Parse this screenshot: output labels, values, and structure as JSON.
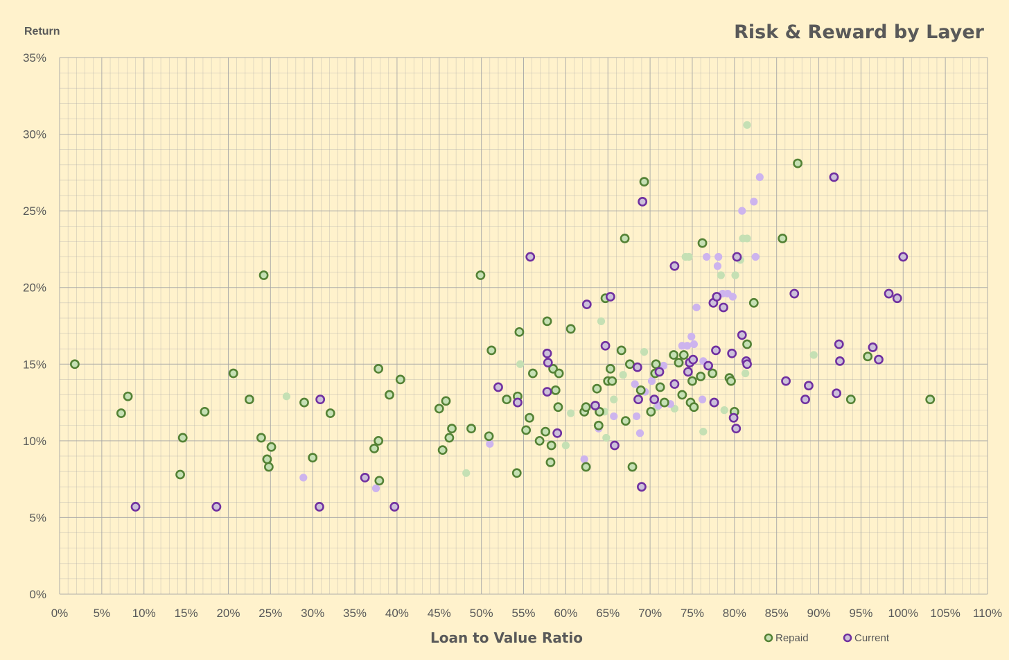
{
  "chart_data": {
    "type": "scatter",
    "title": "Risk & Reward by Layer",
    "ylabel": "Return",
    "xlabel": "Loan to Value Ratio",
    "xlim": [
      0,
      110
    ],
    "ylim": [
      0,
      35
    ],
    "x_ticks": [
      "0%",
      "5%",
      "10%",
      "15%",
      "20%",
      "25%",
      "30%",
      "35%",
      "40%",
      "45%",
      "50%",
      "55%",
      "60%",
      "65%",
      "70%",
      "75%",
      "80%",
      "85%",
      "90%",
      "95%",
      "100%",
      "105%",
      "110%"
    ],
    "y_ticks": [
      "0%",
      "5%",
      "10%",
      "15%",
      "20%",
      "25%",
      "30%",
      "35%"
    ],
    "grid": true,
    "legend": "bottom-right",
    "colors": {
      "background": "#FFF2CC",
      "grid": "#A6A6A6",
      "repaid_edge": "#548235",
      "repaid_fill": "#C5E0B4",
      "current_edge": "#7030A0",
      "current_fill": "#CCC0DA",
      "faded_repaid": "#C5E0B4",
      "faded_current": "#CDB4EE"
    },
    "series": [
      {
        "name": "Repaid",
        "values": [
          [
            1.8,
            15
          ],
          [
            7.3,
            11.8
          ],
          [
            8.1,
            12.9
          ],
          [
            14.3,
            7.8
          ],
          [
            14.6,
            10.2
          ],
          [
            17.2,
            11.9
          ],
          [
            20.6,
            14.4
          ],
          [
            22.5,
            12.7
          ],
          [
            23.9,
            10.2
          ],
          [
            24.2,
            20.8
          ],
          [
            24.6,
            8.8
          ],
          [
            24.8,
            8.3
          ],
          [
            25.1,
            9.6
          ],
          [
            29,
            12.5
          ],
          [
            30,
            8.9
          ],
          [
            32.1,
            11.8
          ],
          [
            37.3,
            9.5
          ],
          [
            37.8,
            10
          ],
          [
            37.8,
            14.7
          ],
          [
            37.9,
            7.4
          ],
          [
            39.1,
            13
          ],
          [
            40.4,
            14
          ],
          [
            45,
            12.1
          ],
          [
            45.4,
            9.4
          ],
          [
            45.8,
            12.6
          ],
          [
            46.2,
            10.2
          ],
          [
            46.5,
            10.8
          ],
          [
            48.8,
            10.8
          ],
          [
            49.9,
            20.8
          ],
          [
            50.9,
            10.3
          ],
          [
            51.2,
            15.9
          ],
          [
            53,
            12.7
          ],
          [
            54.2,
            7.9
          ],
          [
            54.3,
            12.9
          ],
          [
            54.5,
            17.1
          ],
          [
            55.3,
            10.7
          ],
          [
            55.7,
            11.5
          ],
          [
            56.1,
            14.4
          ],
          [
            56.9,
            10
          ],
          [
            57.6,
            10.6
          ],
          [
            57.8,
            17.8
          ],
          [
            58.2,
            8.6
          ],
          [
            58.3,
            9.7
          ],
          [
            58.5,
            14.7
          ],
          [
            58.8,
            13.3
          ],
          [
            59.1,
            12.2
          ],
          [
            59.2,
            14.4
          ],
          [
            60.6,
            17.3
          ],
          [
            62.2,
            11.9
          ],
          [
            62.4,
            8.3
          ],
          [
            62.4,
            12.2
          ],
          [
            63.7,
            13.4
          ],
          [
            63.9,
            11
          ],
          [
            64,
            11.9
          ],
          [
            64.7,
            19.3
          ],
          [
            65,
            13.9
          ],
          [
            65.3,
            14.7
          ],
          [
            65.5,
            13.9
          ],
          [
            66.6,
            15.9
          ],
          [
            67.1,
            11.3
          ],
          [
            67,
            23.2
          ],
          [
            67.6,
            15
          ],
          [
            67.9,
            8.3
          ],
          [
            68.9,
            13.3
          ],
          [
            69.3,
            26.9
          ],
          [
            70.1,
            11.9
          ],
          [
            70.6,
            14.4
          ],
          [
            70.7,
            15
          ],
          [
            71.2,
            13.5
          ],
          [
            71.7,
            12.5
          ],
          [
            72.8,
            15.6
          ],
          [
            73.4,
            15.1
          ],
          [
            73.8,
            13
          ],
          [
            74,
            15.6
          ],
          [
            74.8,
            12.5
          ],
          [
            75,
            13.9
          ],
          [
            75.2,
            12.2
          ],
          [
            76,
            14.2
          ],
          [
            76.2,
            22.9
          ],
          [
            77.4,
            14.4
          ],
          [
            79.4,
            14.1
          ],
          [
            79.6,
            13.9
          ],
          [
            80,
            11.9
          ],
          [
            81.5,
            16.3
          ],
          [
            82.3,
            19
          ],
          [
            85.7,
            23.2
          ],
          [
            87.5,
            28.1
          ],
          [
            93.8,
            12.7
          ],
          [
            95.8,
            15.5
          ],
          [
            103.2,
            12.7
          ]
        ]
      },
      {
        "name": "Current",
        "values": [
          [
            9,
            5.7
          ],
          [
            18.6,
            5.7
          ],
          [
            30.8,
            5.7
          ],
          [
            30.9,
            12.7
          ],
          [
            36.2,
            7.6
          ],
          [
            39.7,
            5.7
          ],
          [
            52,
            13.5
          ],
          [
            54.3,
            12.5
          ],
          [
            55.8,
            22
          ],
          [
            57.8,
            15.7
          ],
          [
            57.9,
            15.1
          ],
          [
            57.8,
            13.2
          ],
          [
            59,
            10.5
          ],
          [
            62.5,
            18.9
          ],
          [
            63.5,
            12.3
          ],
          [
            64.7,
            16.2
          ],
          [
            65.3,
            19.4
          ],
          [
            65.8,
            9.7
          ],
          [
            68.5,
            14.8
          ],
          [
            68.6,
            12.7
          ],
          [
            69,
            7
          ],
          [
            69.1,
            25.6
          ],
          [
            70.5,
            12.7
          ],
          [
            71.1,
            14.5
          ],
          [
            72.9,
            21.4
          ],
          [
            72.9,
            13.7
          ],
          [
            74.5,
            14.5
          ],
          [
            74.7,
            15.1
          ],
          [
            75.1,
            15.3
          ],
          [
            76.9,
            14.9
          ],
          [
            77.5,
            19
          ],
          [
            77.6,
            12.5
          ],
          [
            77.9,
            19.4
          ],
          [
            77.8,
            15.9
          ],
          [
            78.7,
            18.7
          ],
          [
            79.7,
            15.7
          ],
          [
            79.9,
            11.5
          ],
          [
            80.2,
            10.8
          ],
          [
            80.3,
            22
          ],
          [
            80.9,
            16.9
          ],
          [
            81.4,
            15.2
          ],
          [
            81.5,
            15
          ],
          [
            86.1,
            13.9
          ],
          [
            87.1,
            19.6
          ],
          [
            88.4,
            12.7
          ],
          [
            88.8,
            13.6
          ],
          [
            91.8,
            27.2
          ],
          [
            92.1,
            13.1
          ],
          [
            92.4,
            16.3
          ],
          [
            92.5,
            15.2
          ],
          [
            98.3,
            19.6
          ],
          [
            96.4,
            16.1
          ],
          [
            97.1,
            15.3
          ],
          [
            99.3,
            19.3
          ],
          [
            100,
            22
          ]
        ]
      },
      {
        "name": "",
        "style": "faded-repaid",
        "values": [
          [
            26.9,
            12.9
          ],
          [
            48.2,
            7.9
          ],
          [
            54.6,
            15
          ],
          [
            60,
            9.7
          ],
          [
            60.6,
            11.8
          ],
          [
            64.2,
            17.8
          ],
          [
            64.6,
            11.9
          ],
          [
            64.8,
            10.2
          ],
          [
            65.7,
            12.7
          ],
          [
            66.8,
            14.3
          ],
          [
            69.3,
            15.8
          ],
          [
            70.8,
            12.2
          ],
          [
            72.9,
            12.1
          ],
          [
            74.2,
            22
          ],
          [
            74.6,
            22
          ],
          [
            76.3,
            10.6
          ],
          [
            78.4,
            20.8
          ],
          [
            78.8,
            12
          ],
          [
            80.1,
            20.8
          ],
          [
            80.7,
            21.8
          ],
          [
            81,
            23.2
          ],
          [
            81.5,
            23.2
          ],
          [
            81.3,
            14.4
          ],
          [
            81.5,
            30.6
          ],
          [
            89.4,
            15.6
          ]
        ]
      },
      {
        "name": "",
        "style": "faded-current",
        "values": [
          [
            28.9,
            7.6
          ],
          [
            37.5,
            6.9
          ],
          [
            51,
            9.8
          ],
          [
            62.2,
            8.8
          ],
          [
            63.9,
            10.8
          ],
          [
            65.7,
            11.6
          ],
          [
            68.2,
            13.7
          ],
          [
            68.4,
            11.6
          ],
          [
            68.8,
            10.5
          ],
          [
            69.4,
            13.2
          ],
          [
            70.2,
            13.9
          ],
          [
            71,
            12.3
          ],
          [
            71.6,
            14.9
          ],
          [
            72.4,
            12.4
          ],
          [
            73.8,
            16.2
          ],
          [
            74.4,
            16.2
          ],
          [
            74.9,
            16.8
          ],
          [
            75.2,
            16.3
          ],
          [
            75.5,
            18.7
          ],
          [
            76.3,
            15.2
          ],
          [
            76.7,
            22
          ],
          [
            76.2,
            12.7
          ],
          [
            78,
            21.4
          ],
          [
            78.1,
            22
          ],
          [
            78.6,
            19.6
          ],
          [
            79.2,
            19.6
          ],
          [
            79.8,
            19.4
          ],
          [
            80.9,
            25
          ],
          [
            82.3,
            25.6
          ],
          [
            82.5,
            22
          ],
          [
            83,
            27.2
          ]
        ]
      }
    ]
  }
}
